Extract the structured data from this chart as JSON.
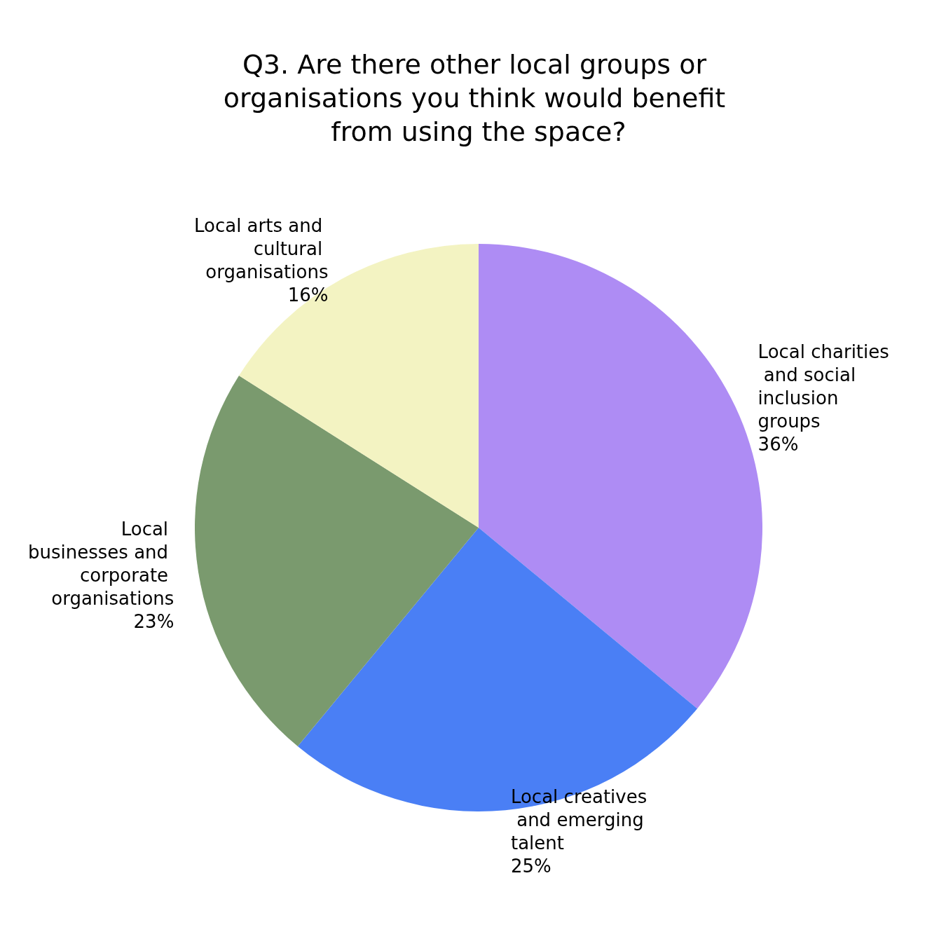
{
  "chart_data": {
    "type": "pie",
    "title": "Q3. Are there other local groups or organisations you think would benefit from using the space?",
    "categories": [
      "Local charities and social inclusion groups",
      "Local creatives and emerging talent",
      "Local businesses and corporate organisations",
      "Local arts and cultural organisations"
    ],
    "values": [
      36,
      25,
      23,
      16
    ],
    "value_labels": [
      "36%",
      "25%",
      "23%",
      "16%"
    ],
    "colors": [
      "#ae8cf4",
      "#4a7ff5",
      "#7a9a6e",
      "#f3f3c2"
    ],
    "legend": false
  }
}
